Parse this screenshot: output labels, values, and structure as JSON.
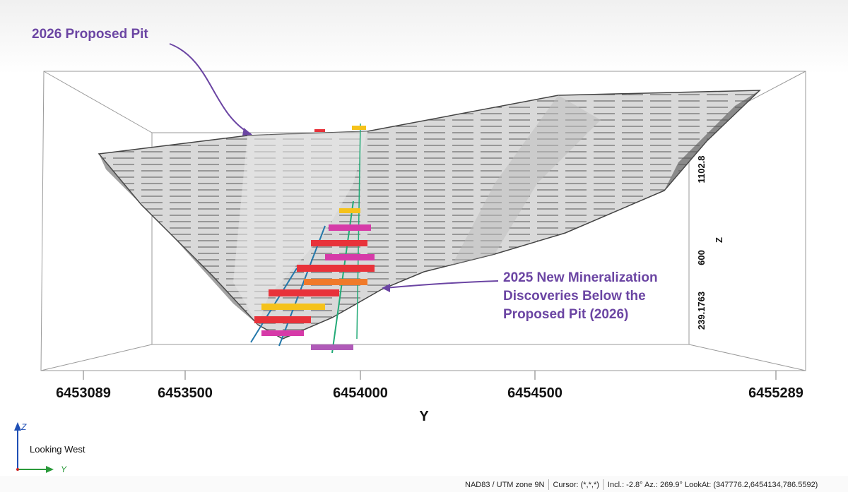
{
  "annotations": {
    "pit_label": "2026 Proposed Pit",
    "discovery_label": [
      "2025 New Mineralization",
      "Discoveries Below the",
      "Proposed Pit (2026)"
    ]
  },
  "y_axis": {
    "title": "Y",
    "ticks": [
      "6453089",
      "6453500",
      "6454000",
      "6454500",
      "6455289"
    ]
  },
  "z_axis": {
    "title": "Z",
    "ticks": [
      "1102.8",
      "600",
      "239.1763"
    ]
  },
  "compass": {
    "up": "Z",
    "right": "Y",
    "view": "Looking West"
  },
  "status_bar": [
    "NAD83 / UTM zone 9N",
    "Cursor: (*,*,*)",
    "Incl.: -2.8° Az.: 269.9° LookAt: (347776.2,6454134,786.5592)"
  ]
}
